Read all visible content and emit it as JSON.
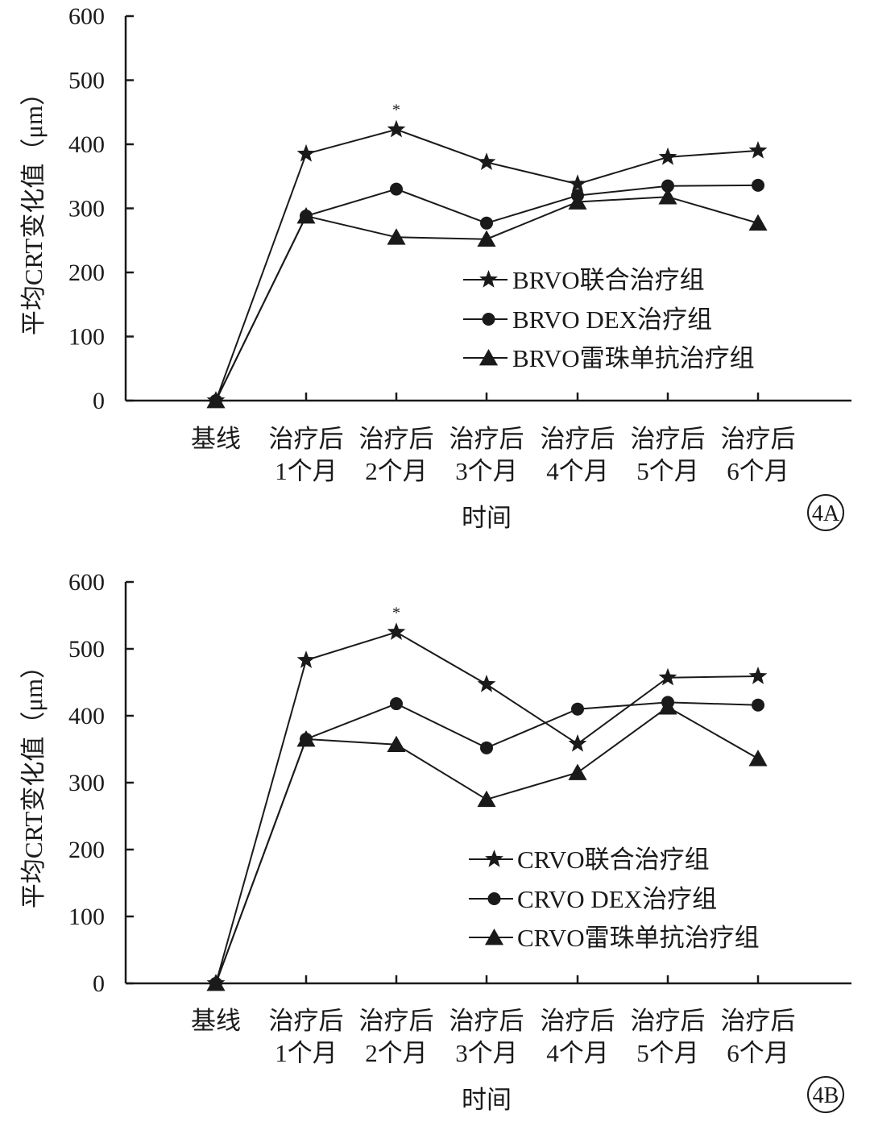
{
  "chart_data": [
    {
      "type": "line",
      "panel_label": "4A",
      "ylabel": "平均CRT变化值（μm）",
      "xlabel": "时间",
      "ylim": [
        0,
        600
      ],
      "yticks": [
        "0",
        "100",
        "200",
        "300",
        "400",
        "500",
        "600"
      ],
      "categories": [
        {
          "line1": "基线",
          "line2": ""
        },
        {
          "line1": "治疗后",
          "line2": "1个月"
        },
        {
          "line1": "治疗后",
          "line2": "2个月"
        },
        {
          "line1": "治疗后",
          "line2": "3个月"
        },
        {
          "line1": "治疗后",
          "line2": "4个月"
        },
        {
          "line1": "治疗后",
          "line2": "5个月"
        },
        {
          "line1": "治疗后",
          "line2": "6个月"
        }
      ],
      "series": [
        {
          "name": "BRVO联合治疗组",
          "marker": "star",
          "values": [
            0,
            385,
            423,
            372,
            338,
            380,
            390
          ]
        },
        {
          "name": "BRVO DEX治疗组",
          "marker": "circle",
          "values": [
            0,
            288,
            330,
            277,
            320,
            335,
            336
          ]
        },
        {
          "name": "BRVO雷珠单抗治疗组",
          "marker": "triangle",
          "values": [
            0,
            288,
            255,
            252,
            310,
            318,
            277
          ]
        }
      ],
      "annotations": [
        {
          "category_index": 2,
          "text": "*"
        }
      ]
    },
    {
      "type": "line",
      "panel_label": "4B",
      "ylabel": "平均CRT变化值（μm）",
      "xlabel": "时间",
      "ylim": [
        0,
        600
      ],
      "yticks": [
        "0",
        "100",
        "200",
        "300",
        "400",
        "500",
        "600"
      ],
      "categories": [
        {
          "line1": "基线",
          "line2": ""
        },
        {
          "line1": "治疗后",
          "line2": "1个月"
        },
        {
          "line1": "治疗后",
          "line2": "2个月"
        },
        {
          "line1": "治疗后",
          "line2": "3个月"
        },
        {
          "line1": "治疗后",
          "line2": "4个月"
        },
        {
          "line1": "治疗后",
          "line2": "5个月"
        },
        {
          "line1": "治疗后",
          "line2": "6个月"
        }
      ],
      "series": [
        {
          "name": "CRVO联合治疗组",
          "marker": "star",
          "values": [
            0,
            483,
            525,
            447,
            358,
            457,
            459
          ]
        },
        {
          "name": "CRVO DEX治疗组",
          "marker": "circle",
          "values": [
            0,
            365,
            418,
            352,
            410,
            420,
            416
          ]
        },
        {
          "name": "CRVO雷珠单抗治疗组",
          "marker": "triangle",
          "values": [
            0,
            365,
            357,
            275,
            315,
            413,
            336
          ]
        }
      ],
      "annotations": [
        {
          "category_index": 2,
          "text": "*"
        }
      ]
    }
  ]
}
